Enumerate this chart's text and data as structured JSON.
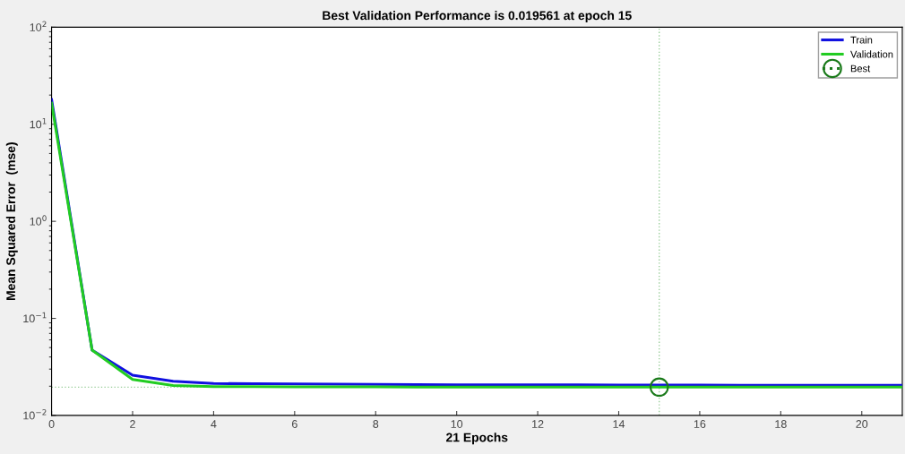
{
  "chart_data": {
    "type": "line",
    "title": "Best Validation Performance is 0.019561 at epoch 15",
    "xlabel": "21 Epochs",
    "ylabel": "Mean Squared Error  (mse)",
    "x": [
      0,
      1,
      2,
      3,
      4,
      5,
      6,
      7,
      8,
      9,
      10,
      11,
      12,
      13,
      14,
      15,
      16,
      17,
      18,
      19,
      20,
      21
    ],
    "series": [
      {
        "name": "Train",
        "color": "#1010e0",
        "values": [
          18,
          0.047,
          0.026,
          0.0225,
          0.0213,
          0.0212,
          0.0211,
          0.021,
          0.0209,
          0.0208,
          0.0207,
          0.0207,
          0.0206,
          0.0206,
          0.0205,
          0.0205,
          0.0205,
          0.0204,
          0.0204,
          0.0204,
          0.0204,
          0.0204
        ]
      },
      {
        "name": "Validation",
        "color": "#22cc22",
        "values": [
          16.5,
          0.047,
          0.0235,
          0.0203,
          0.0198,
          0.0198,
          0.0197,
          0.0197,
          0.0197,
          0.0196,
          0.0196,
          0.0196,
          0.0196,
          0.0196,
          0.0196,
          0.0196,
          0.0196,
          0.0196,
          0.0196,
          0.0196,
          0.0196,
          0.0196
        ]
      },
      {
        "name": "Best",
        "color": "#1a7a1a",
        "x": [
          15
        ],
        "values": [
          0.019561
        ],
        "marker": "circle",
        "line_style": "dotted"
      }
    ],
    "ref_lines": [
      {
        "axis": "x",
        "value": 15,
        "color": "#9ccf9c",
        "line_style": "dotted"
      },
      {
        "axis": "y",
        "value": 0.019561,
        "color": "#9ccf9c",
        "line_style": "dotted"
      }
    ],
    "log": "y",
    "xlim": [
      0,
      21
    ],
    "xticks": [
      0,
      2,
      4,
      6,
      8,
      10,
      12,
      14,
      16,
      18,
      20
    ],
    "ylim": [
      0.01,
      100
    ],
    "yticks": [
      {
        "value": 0.01,
        "label": "10$^{−2}$"
      },
      {
        "value": 0.1,
        "label": "10$^{−1}$"
      },
      {
        "value": 1,
        "label": "10$^{0}$"
      },
      {
        "value": 10,
        "label": "10$^{1}$"
      },
      {
        "value": 100,
        "label": "10$^{2}$"
      }
    ],
    "grid": false,
    "legend": "top right"
  }
}
